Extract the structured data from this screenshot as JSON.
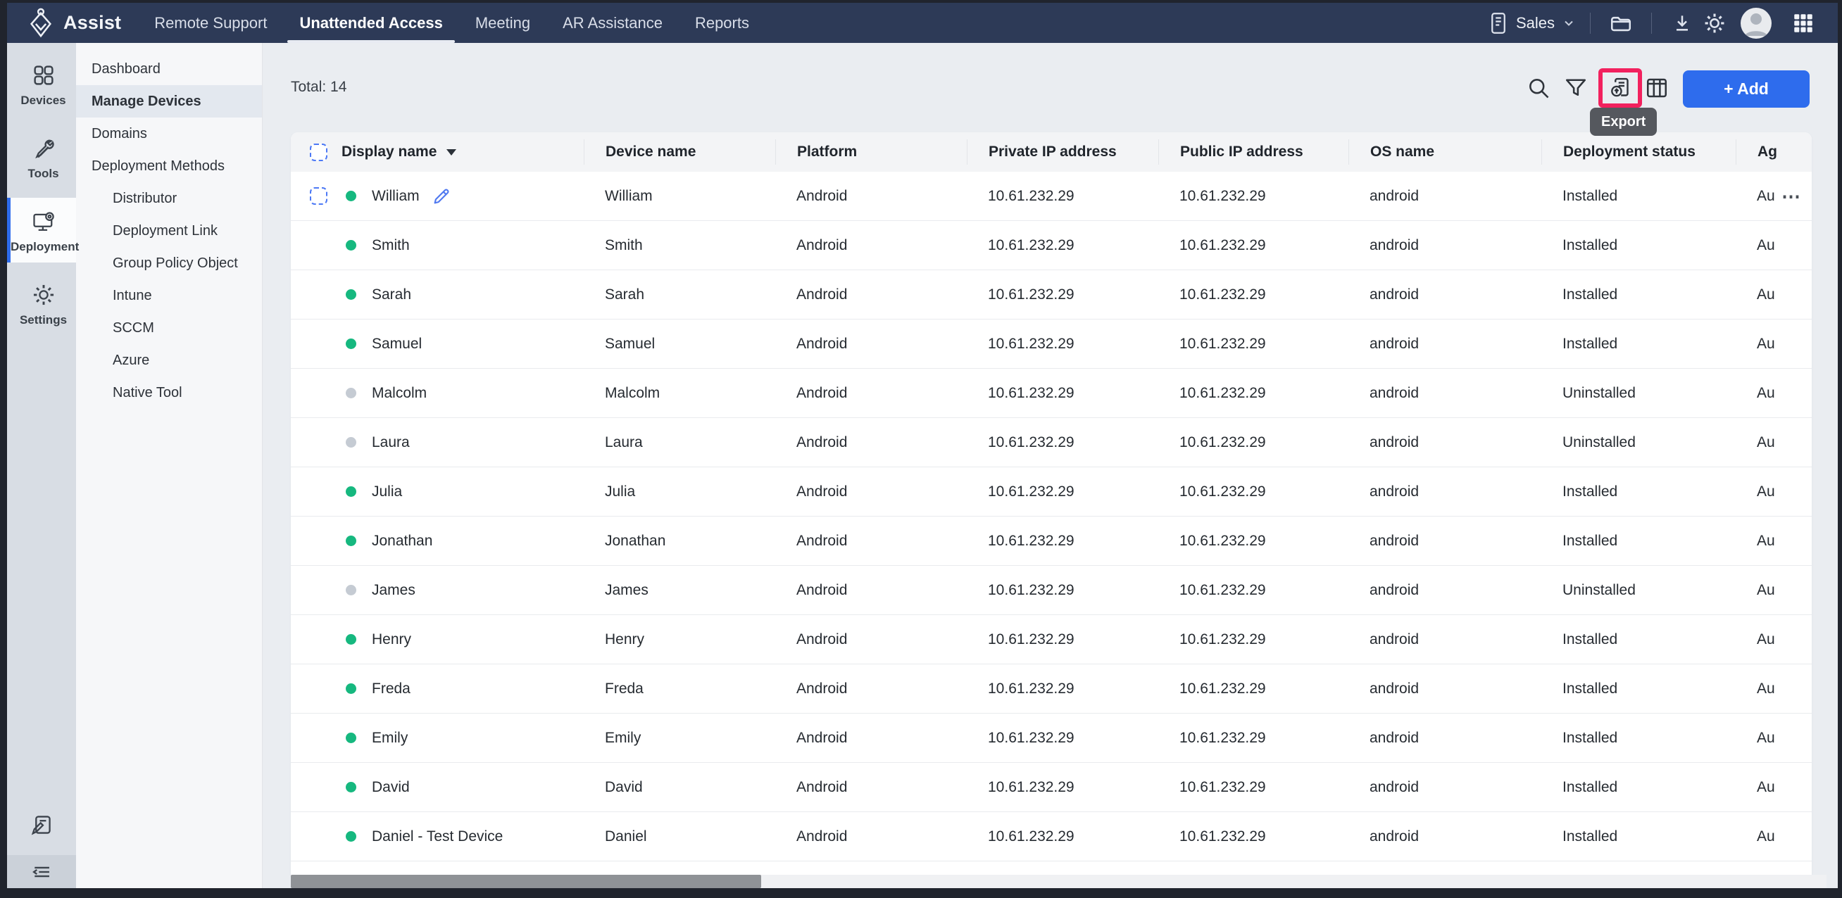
{
  "topnav": {
    "brand": "Assist",
    "items": [
      {
        "label": "Remote Support",
        "active": false
      },
      {
        "label": "Unattended Access",
        "active": true
      },
      {
        "label": "Meeting",
        "active": false
      },
      {
        "label": "AR Assistance",
        "active": false
      },
      {
        "label": "Reports",
        "active": false
      }
    ],
    "portal_label": "Sales"
  },
  "rail": {
    "items": [
      {
        "label": "Devices",
        "icon": "devices-icon",
        "active": false
      },
      {
        "label": "Tools",
        "icon": "tools-icon",
        "active": false
      },
      {
        "label": "Deployment",
        "icon": "deployment-icon",
        "active": true
      },
      {
        "label": "Settings",
        "icon": "settings-icon",
        "active": false
      }
    ]
  },
  "sidebar": {
    "items": [
      {
        "label": "Dashboard",
        "active": false,
        "indent": false
      },
      {
        "label": "Manage Devices",
        "active": true,
        "indent": false
      },
      {
        "label": "Domains",
        "active": false,
        "indent": false
      },
      {
        "label": "Deployment Methods",
        "active": false,
        "indent": false
      },
      {
        "label": "Distributor",
        "active": false,
        "indent": true
      },
      {
        "label": "Deployment Link",
        "active": false,
        "indent": true
      },
      {
        "label": "Group Policy Object",
        "active": false,
        "indent": true
      },
      {
        "label": "Intune",
        "active": false,
        "indent": true
      },
      {
        "label": "SCCM",
        "active": false,
        "indent": true
      },
      {
        "label": "Azure",
        "active": false,
        "indent": true
      },
      {
        "label": "Native Tool",
        "active": false,
        "indent": true
      }
    ]
  },
  "toolbar": {
    "total_label": "Total: 14",
    "add_label": "+ Add",
    "export_tooltip": "Export"
  },
  "table": {
    "columns": [
      "Display name",
      "Device name",
      "Platform",
      "Private IP address",
      "Public IP address",
      "OS name",
      "Deployment status",
      "Ag"
    ],
    "row_menu_glyph": "⋯",
    "rows": [
      {
        "display_name": "William",
        "device_name": "William",
        "platform": "Android",
        "private_ip": "10.61.232.29",
        "public_ip": "10.61.232.29",
        "os_name": "android",
        "status": "Installed",
        "agent": "Au",
        "online": true,
        "checkbox": true,
        "editable": true,
        "menu": true
      },
      {
        "display_name": "Smith",
        "device_name": "Smith",
        "platform": "Android",
        "private_ip": "10.61.232.29",
        "public_ip": "10.61.232.29",
        "os_name": "android",
        "status": "Installed",
        "agent": "Au",
        "online": true,
        "checkbox": false,
        "editable": false,
        "menu": false
      },
      {
        "display_name": "Sarah",
        "device_name": "Sarah",
        "platform": "Android",
        "private_ip": "10.61.232.29",
        "public_ip": "10.61.232.29",
        "os_name": "android",
        "status": "Installed",
        "agent": "Au",
        "online": true,
        "checkbox": false,
        "editable": false,
        "menu": false
      },
      {
        "display_name": "Samuel",
        "device_name": "Samuel",
        "platform": "Android",
        "private_ip": "10.61.232.29",
        "public_ip": "10.61.232.29",
        "os_name": "android",
        "status": "Installed",
        "agent": "Au",
        "online": true,
        "checkbox": false,
        "editable": false,
        "menu": false
      },
      {
        "display_name": "Malcolm",
        "device_name": "Malcolm",
        "platform": "Android",
        "private_ip": "10.61.232.29",
        "public_ip": "10.61.232.29",
        "os_name": "android",
        "status": "Uninstalled",
        "agent": "Au",
        "online": false,
        "checkbox": false,
        "editable": false,
        "menu": false
      },
      {
        "display_name": "Laura",
        "device_name": "Laura",
        "platform": "Android",
        "private_ip": "10.61.232.29",
        "public_ip": "10.61.232.29",
        "os_name": "android",
        "status": "Uninstalled",
        "agent": "Au",
        "online": false,
        "checkbox": false,
        "editable": false,
        "menu": false
      },
      {
        "display_name": "Julia",
        "device_name": "Julia",
        "platform": "Android",
        "private_ip": "10.61.232.29",
        "public_ip": "10.61.232.29",
        "os_name": "android",
        "status": "Installed",
        "agent": "Au",
        "online": true,
        "checkbox": false,
        "editable": false,
        "menu": false
      },
      {
        "display_name": "Jonathan",
        "device_name": "Jonathan",
        "platform": "Android",
        "private_ip": "10.61.232.29",
        "public_ip": "10.61.232.29",
        "os_name": "android",
        "status": "Installed",
        "agent": "Au",
        "online": true,
        "checkbox": false,
        "editable": false,
        "menu": false
      },
      {
        "display_name": "James",
        "device_name": "James",
        "platform": "Android",
        "private_ip": "10.61.232.29",
        "public_ip": "10.61.232.29",
        "os_name": "android",
        "status": "Uninstalled",
        "agent": "Au",
        "online": false,
        "checkbox": false,
        "editable": false,
        "menu": false
      },
      {
        "display_name": "Henry",
        "device_name": "Henry",
        "platform": "Android",
        "private_ip": "10.61.232.29",
        "public_ip": "10.61.232.29",
        "os_name": "android",
        "status": "Installed",
        "agent": "Au",
        "online": true,
        "checkbox": false,
        "editable": false,
        "menu": false
      },
      {
        "display_name": "Freda",
        "device_name": "Freda",
        "platform": "Android",
        "private_ip": "10.61.232.29",
        "public_ip": "10.61.232.29",
        "os_name": "android",
        "status": "Installed",
        "agent": "Au",
        "online": true,
        "checkbox": false,
        "editable": false,
        "menu": false
      },
      {
        "display_name": "Emily",
        "device_name": "Emily",
        "platform": "Android",
        "private_ip": "10.61.232.29",
        "public_ip": "10.61.232.29",
        "os_name": "android",
        "status": "Installed",
        "agent": "Au",
        "online": true,
        "checkbox": false,
        "editable": false,
        "menu": false
      },
      {
        "display_name": "David",
        "device_name": "David",
        "platform": "Android",
        "private_ip": "10.61.232.29",
        "public_ip": "10.61.232.29",
        "os_name": "android",
        "status": "Installed",
        "agent": "Au",
        "online": true,
        "checkbox": false,
        "editable": false,
        "menu": false
      },
      {
        "display_name": "Daniel - Test Device",
        "device_name": "Daniel",
        "platform": "Android",
        "private_ip": "10.61.232.29",
        "public_ip": "10.61.232.29",
        "os_name": "android",
        "status": "Installed",
        "agent": "Au",
        "online": true,
        "checkbox": false,
        "editable": false,
        "menu": false
      }
    ]
  },
  "colors": {
    "nav_bg": "#2d3a57",
    "accent": "#2e6ced",
    "highlight": "#f2215e",
    "online": "#16b87f",
    "offline": "#c5cbd3",
    "tooltip_bg": "#55585e"
  }
}
